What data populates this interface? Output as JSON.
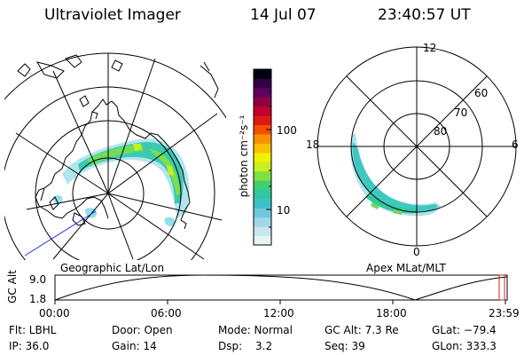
{
  "header": {
    "instrument": "Ultraviolet Imager",
    "date": "14 Jul 07",
    "time": "23:40:57 UT"
  },
  "geo_map": {
    "label": "Geographic Lat/Lon"
  },
  "polar_map": {
    "label": "Apex MLat/MLT",
    "mlt_labels": {
      "top": "12",
      "left": "18",
      "right": "6",
      "bottom": "0"
    },
    "lat_labels": [
      "60",
      "70",
      "80"
    ]
  },
  "colorbar": {
    "unit_label": "photon cm⁻²s⁻¹",
    "ticks": [
      "100",
      "10"
    ],
    "colors": [
      "#e8f4f4",
      "#c8e8f0",
      "#a0d8e8",
      "#70c8e0",
      "#40c0c8",
      "#30c8a0",
      "#40d070",
      "#80e040",
      "#c8f020",
      "#f0f000",
      "#f8c000",
      "#f89000",
      "#f05000",
      "#e01818",
      "#c0002a",
      "#900040",
      "#600060",
      "#300040",
      "#000010"
    ]
  },
  "timeline": {
    "y_label": "GC Alt",
    "y_ticks": [
      "9.0",
      "1.8"
    ],
    "x_ticks": [
      "00:00",
      "06:00",
      "12:00",
      "18:00",
      "23:59"
    ]
  },
  "status": {
    "flt": "Flt: LBHL",
    "ip": "IP: 36.0",
    "door": "Door: Open",
    "gain": "Gain: 14",
    "mode": "Mode: Normal",
    "dsp_label": "Dsp:",
    "dsp_value": "3.2",
    "gc_alt": "GC Alt: 7.3 Re",
    "seq": "Seq: 39",
    "glat": "GLat: −79.4",
    "glon": "GLon: 333.3"
  }
}
